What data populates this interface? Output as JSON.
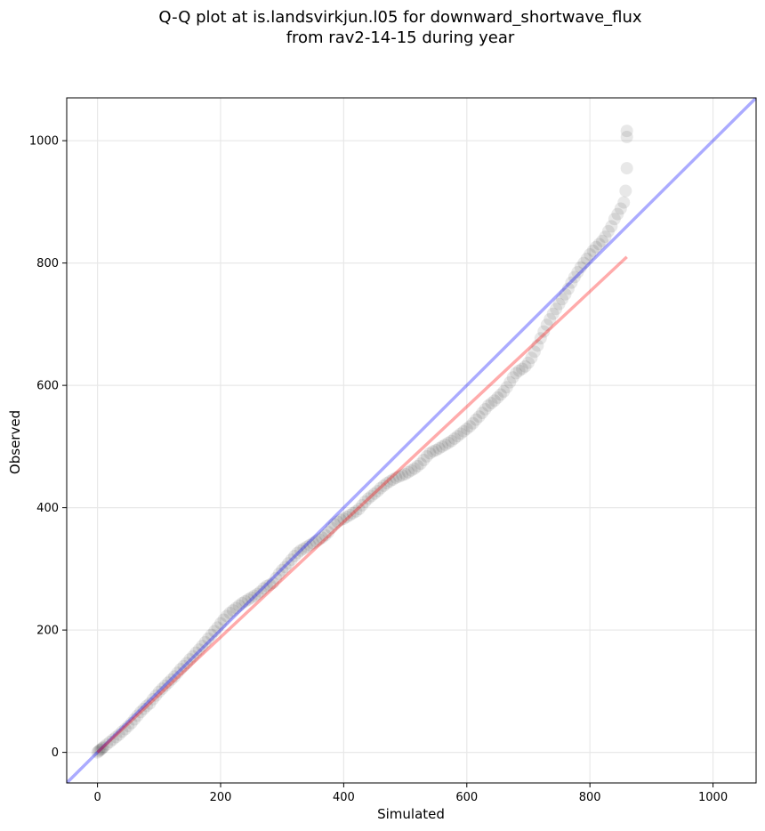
{
  "chart_data": {
    "type": "scatter",
    "title": "Q-Q plot at is.landsvirkjun.l05 for downward_shortwave_flux",
    "subtitle": "from rav2-14-15 during year",
    "xlabel": "Simulated",
    "ylabel": "Observed",
    "xlim": [
      -50,
      1070
    ],
    "ylim": [
      -50,
      1070
    ],
    "xticks": [
      "0",
      "200",
      "400",
      "600",
      "800",
      "1000"
    ],
    "yticks": [
      "0",
      "200",
      "400",
      "600",
      "800",
      "1000"
    ],
    "grid": true,
    "reference_lines": [
      {
        "kind": "1:1 line",
        "color": "#0000ff",
        "points": [
          [
            -50,
            -50
          ],
          [
            1070,
            1070
          ]
        ]
      },
      {
        "kind": "fit line",
        "color": "#ff0000",
        "points": [
          [
            0,
            0
          ],
          [
            860,
            810
          ]
        ]
      }
    ],
    "series": [
      {
        "color": "#000000",
        "points": [
          [
            0,
            0
          ],
          [
            2,
            2
          ],
          [
            4,
            4
          ],
          [
            6,
            5
          ],
          [
            8,
            7
          ],
          [
            10,
            9
          ],
          [
            15,
            13
          ],
          [
            20,
            17
          ],
          [
            25,
            21
          ],
          [
            30,
            25
          ],
          [
            35,
            29
          ],
          [
            40,
            34
          ],
          [
            45,
            38
          ],
          [
            50,
            43
          ],
          [
            55,
            48
          ],
          [
            60,
            54
          ],
          [
            65,
            60
          ],
          [
            70,
            66
          ],
          [
            75,
            71
          ],
          [
            80,
            76
          ],
          [
            85,
            80
          ],
          [
            90,
            87
          ],
          [
            95,
            93
          ],
          [
            100,
            99
          ],
          [
            105,
            104
          ],
          [
            110,
            109
          ],
          [
            115,
            114
          ],
          [
            120,
            119
          ],
          [
            125,
            124
          ],
          [
            130,
            130
          ],
          [
            135,
            136
          ],
          [
            140,
            141
          ],
          [
            145,
            146
          ],
          [
            150,
            152
          ],
          [
            155,
            157
          ],
          [
            160,
            163
          ],
          [
            165,
            168
          ],
          [
            170,
            174
          ],
          [
            175,
            180
          ],
          [
            180,
            186
          ],
          [
            185,
            192
          ],
          [
            190,
            198
          ],
          [
            195,
            204
          ],
          [
            200,
            211
          ],
          [
            205,
            217
          ],
          [
            210,
            223
          ],
          [
            215,
            228
          ],
          [
            220,
            232
          ],
          [
            225,
            236
          ],
          [
            230,
            240
          ],
          [
            235,
            244
          ],
          [
            240,
            247
          ],
          [
            245,
            250
          ],
          [
            250,
            253
          ],
          [
            255,
            256
          ],
          [
            260,
            259
          ],
          [
            265,
            263
          ],
          [
            270,
            268
          ],
          [
            275,
            272
          ],
          [
            280,
            274
          ],
          [
            285,
            277
          ],
          [
            290,
            285
          ],
          [
            295,
            292
          ],
          [
            300,
            298
          ],
          [
            305,
            303
          ],
          [
            310,
            309
          ],
          [
            315,
            315
          ],
          [
            320,
            321
          ],
          [
            325,
            326
          ],
          [
            330,
            330
          ],
          [
            335,
            333
          ],
          [
            340,
            336
          ],
          [
            345,
            339
          ],
          [
            350,
            342
          ],
          [
            355,
            345
          ],
          [
            360,
            348
          ],
          [
            365,
            351
          ],
          [
            370,
            355
          ],
          [
            375,
            360
          ],
          [
            380,
            367
          ],
          [
            385,
            373
          ],
          [
            390,
            377
          ],
          [
            395,
            380
          ],
          [
            400,
            382
          ],
          [
            405,
            385
          ],
          [
            410,
            388
          ],
          [
            415,
            391
          ],
          [
            420,
            394
          ],
          [
            425,
            398
          ],
          [
            430,
            404
          ],
          [
            435,
            410
          ],
          [
            440,
            415
          ],
          [
            445,
            419
          ],
          [
            450,
            423
          ],
          [
            455,
            427
          ],
          [
            460,
            432
          ],
          [
            465,
            436
          ],
          [
            470,
            440
          ],
          [
            475,
            443
          ],
          [
            480,
            446
          ],
          [
            485,
            449
          ],
          [
            490,
            451
          ],
          [
            495,
            453
          ],
          [
            500,
            455
          ],
          [
            505,
            458
          ],
          [
            510,
            461
          ],
          [
            515,
            464
          ],
          [
            520,
            468
          ],
          [
            525,
            472
          ],
          [
            530,
            478
          ],
          [
            535,
            484
          ],
          [
            540,
            489
          ],
          [
            545,
            492
          ],
          [
            550,
            494
          ],
          [
            555,
            497
          ],
          [
            560,
            500
          ],
          [
            565,
            503
          ],
          [
            570,
            506
          ],
          [
            575,
            509
          ],
          [
            580,
            513
          ],
          [
            585,
            517
          ],
          [
            590,
            521
          ],
          [
            595,
            525
          ],
          [
            600,
            529
          ],
          [
            605,
            533
          ],
          [
            610,
            538
          ],
          [
            615,
            544
          ],
          [
            620,
            549
          ],
          [
            625,
            555
          ],
          [
            630,
            561
          ],
          [
            635,
            567
          ],
          [
            640,
            571
          ],
          [
            645,
            575
          ],
          [
            650,
            580
          ],
          [
            655,
            585
          ],
          [
            660,
            590
          ],
          [
            665,
            597
          ],
          [
            670,
            605
          ],
          [
            675,
            613
          ],
          [
            680,
            620
          ],
          [
            685,
            624
          ],
          [
            690,
            627
          ],
          [
            695,
            631
          ],
          [
            700,
            637
          ],
          [
            705,
            645
          ],
          [
            710,
            655
          ],
          [
            715,
            665
          ],
          [
            720,
            677
          ],
          [
            725,
            688
          ],
          [
            730,
            699
          ],
          [
            735,
            708
          ],
          [
            740,
            717
          ],
          [
            745,
            725
          ],
          [
            750,
            733
          ],
          [
            755,
            741
          ],
          [
            760,
            749
          ],
          [
            765,
            758
          ],
          [
            770,
            768
          ],
          [
            775,
            777
          ],
          [
            780,
            785
          ],
          [
            785,
            793
          ],
          [
            790,
            800
          ],
          [
            795,
            807
          ],
          [
            800,
            814
          ],
          [
            805,
            820
          ],
          [
            810,
            826
          ],
          [
            815,
            831
          ],
          [
            820,
            836
          ],
          [
            825,
            843
          ],
          [
            830,
            852
          ],
          [
            835,
            860
          ],
          [
            840,
            872
          ],
          [
            845,
            880
          ],
          [
            850,
            889
          ],
          [
            855,
            899
          ],
          [
            858,
            918
          ],
          [
            860,
            955
          ],
          [
            860,
            1006
          ],
          [
            860,
            1016
          ]
        ]
      }
    ]
  }
}
